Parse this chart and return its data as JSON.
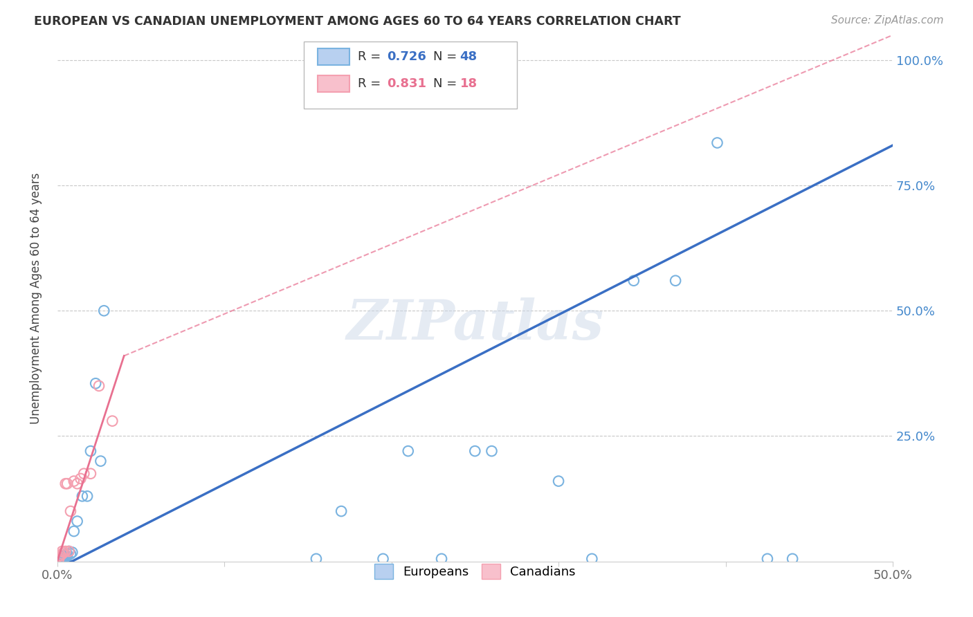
{
  "title": "EUROPEAN VS CANADIAN UNEMPLOYMENT AMONG AGES 60 TO 64 YEARS CORRELATION CHART",
  "source": "Source: ZipAtlas.com",
  "ylabel": "Unemployment Among Ages 60 to 64 years",
  "xlim": [
    0.0,
    0.5
  ],
  "ylim": [
    0.0,
    1.05
  ],
  "xticks": [
    0.0,
    0.1,
    0.2,
    0.3,
    0.4,
    0.5
  ],
  "xticklabels": [
    "0.0%",
    "",
    "",
    "",
    "",
    "50.0%"
  ],
  "ytick_positions": [
    0.0,
    0.25,
    0.5,
    0.75,
    1.0
  ],
  "yticklabels_right": [
    "",
    "25.0%",
    "50.0%",
    "75.0%",
    "100.0%"
  ],
  "european_R": "0.726",
  "european_N": "48",
  "canadian_R": "0.831",
  "canadian_N": "18",
  "european_color": "#7ab3e0",
  "canadian_color": "#f4a0b0",
  "european_line_color": "#3a6fc4",
  "canadian_line_color": "#e87090",
  "watermark": "ZIPatlas",
  "eu_line_x0": 0.0,
  "eu_line_y0": -0.015,
  "eu_line_x1": 0.5,
  "eu_line_y1": 0.83,
  "ca_line_solid_x0": 0.0,
  "ca_line_solid_y0": 0.0,
  "ca_line_solid_x1": 0.04,
  "ca_line_solid_y1": 0.41,
  "ca_line_dash_x0": 0.04,
  "ca_line_dash_y0": 0.41,
  "ca_line_dash_x1": 0.5,
  "ca_line_dash_y1": 1.05,
  "european_x": [
    0.001,
    0.001,
    0.001,
    0.001,
    0.001,
    0.002,
    0.002,
    0.002,
    0.002,
    0.002,
    0.003,
    0.003,
    0.003,
    0.003,
    0.004,
    0.004,
    0.004,
    0.004,
    0.005,
    0.005,
    0.005,
    0.006,
    0.006,
    0.007,
    0.008,
    0.009,
    0.01,
    0.012,
    0.015,
    0.018,
    0.02,
    0.023,
    0.026,
    0.028,
    0.155,
    0.17,
    0.195,
    0.21,
    0.23,
    0.25,
    0.26,
    0.3,
    0.32,
    0.345,
    0.37,
    0.395,
    0.425,
    0.44
  ],
  "european_y": [
    0.005,
    0.004,
    0.005,
    0.003,
    0.006,
    0.004,
    0.005,
    0.003,
    0.006,
    0.007,
    0.005,
    0.004,
    0.006,
    0.008,
    0.005,
    0.007,
    0.01,
    0.012,
    0.005,
    0.008,
    0.012,
    0.01,
    0.015,
    0.02,
    0.015,
    0.018,
    0.06,
    0.08,
    0.13,
    0.13,
    0.22,
    0.355,
    0.2,
    0.5,
    0.005,
    0.1,
    0.005,
    0.22,
    0.005,
    0.22,
    0.22,
    0.16,
    0.005,
    0.56,
    0.56,
    0.835,
    0.005,
    0.005
  ],
  "canadian_x": [
    0.001,
    0.001,
    0.002,
    0.003,
    0.003,
    0.004,
    0.005,
    0.005,
    0.006,
    0.007,
    0.008,
    0.01,
    0.012,
    0.014,
    0.016,
    0.02,
    0.025,
    0.033
  ],
  "canadian_y": [
    0.005,
    0.01,
    0.012,
    0.015,
    0.02,
    0.018,
    0.155,
    0.02,
    0.155,
    0.02,
    0.1,
    0.16,
    0.155,
    0.165,
    0.175,
    0.175,
    0.35,
    0.28
  ]
}
